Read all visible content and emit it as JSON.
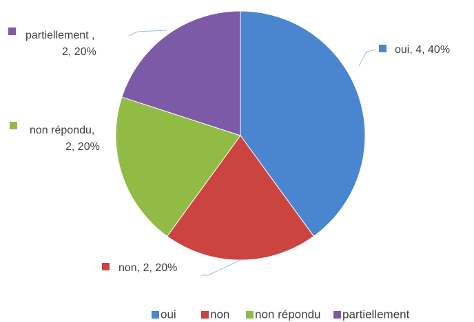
{
  "chart_data": {
    "type": "pie",
    "categories": [
      "oui",
      "non",
      "non répondu",
      "partiellement"
    ],
    "values": [
      4,
      2,
      2,
      2
    ],
    "value_labels": [
      "oui, 4, 40%",
      "non, 2, 20%",
      "non répondu,\n2, 20%",
      "partiellement ,\n2, 20%"
    ],
    "colors": [
      "#4a86d0",
      "#cc4440",
      "#90bb45",
      "#7d5aa8"
    ],
    "legend": "bottom"
  }
}
